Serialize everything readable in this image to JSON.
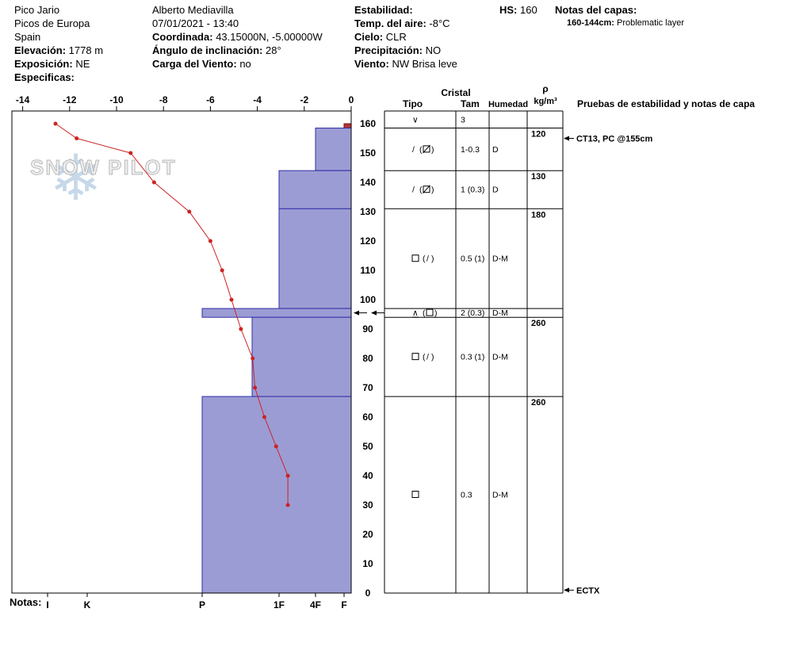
{
  "header": {
    "site": {
      "name": "Pico Jario",
      "range": "Picos de Europa",
      "country": "Spain",
      "elevation_label": "Elevación:",
      "elevation": "1778 m",
      "aspect_label": "Exposición:",
      "aspect": "NE",
      "specifics_label": "Especificas:"
    },
    "observer": {
      "name": "Alberto Mediavilla",
      "datetime": "07/01/2021 - 13:40",
      "coordinates_label": "Coordinada:",
      "coordinates": "43.15000N, -5.00000W",
      "slope_angle_label": "Ángulo de inclinación:",
      "slope_angle": "28°",
      "wind_loading_label": "Carga del Viento:",
      "wind_loading": "no"
    },
    "weather": {
      "stability_label": "Estabilidad:",
      "air_temp_label": "Temp. del aire:",
      "air_temp": "-8°C",
      "sky_label": "Cielo:",
      "sky": "CLR",
      "precip_label": "Precipitación:",
      "precip": "NO",
      "wind_label": "Viento:",
      "wind": "NW Brisa leve"
    },
    "hs_label": "HS:",
    "hs_value": "160",
    "layer_notes_label": "Notas del capas:",
    "layer_note_range": "160-144cm:",
    "layer_note_text": "Problematic layer"
  },
  "watermark": {
    "text": "SNOW PILOT",
    "flake_glyph": "❄"
  },
  "notes_label": "Notas:",
  "chart_data": {
    "type": "snow-profile",
    "temp_axis": {
      "ticks": [
        -14,
        -12,
        -10,
        -8,
        -6,
        -4,
        -2,
        0
      ],
      "unit": "°C"
    },
    "depth_axis": {
      "ticks": [
        0,
        10,
        20,
        30,
        40,
        50,
        60,
        70,
        80,
        90,
        100,
        110,
        120,
        130,
        140,
        150,
        160
      ],
      "unit": "cm",
      "total_depth_cm": 160
    },
    "hardness_axis": {
      "categories": [
        "I",
        "K",
        "P",
        "1F",
        "4F",
        "F"
      ]
    },
    "temperature_profile": {
      "depths_cm": [
        160,
        155,
        150,
        140,
        130,
        120,
        110,
        100,
        90,
        80,
        70,
        60,
        50,
        40,
        30
      ],
      "temps_c": [
        -12.6,
        -11.7,
        -9.4,
        -8.4,
        -6.9,
        -6.0,
        -5.5,
        -5.1,
        -4.7,
        -4.2,
        -4.1,
        -3.7,
        -3.2,
        -2.7,
        -2.7
      ]
    },
    "layers": [
      {
        "top_cm": 160,
        "bottom_cm": 158.5,
        "hardness": "F",
        "surface_red": true
      },
      {
        "top_cm": 158.5,
        "bottom_cm": 144,
        "hardness": "4F"
      },
      {
        "top_cm": 144,
        "bottom_cm": 131,
        "hardness": "1F"
      },
      {
        "top_cm": 131,
        "bottom_cm": 97,
        "hardness": "1F"
      },
      {
        "top_cm": 97,
        "bottom_cm": 94,
        "hardness": "P"
      },
      {
        "top_cm": 94,
        "bottom_cm": 67,
        "hardness": "1F-P"
      },
      {
        "top_cm": 67,
        "bottom_cm": 0,
        "hardness": "P"
      }
    ],
    "flagged_layer_depth_cm": 95.5,
    "colors": {
      "bar_fill": "#9c9cd4",
      "bar_stroke": "#3030a8",
      "surface_layer": "#b23434",
      "temp_line": "#cc2222"
    }
  },
  "table": {
    "headers": {
      "cristal": "Cristal",
      "tipo": "Tipo",
      "tam": "Tam",
      "humedad": "Humedad",
      "rho": "ρ",
      "rho_units": "kg/m³",
      "tests": "Pruebas de estabilidad y notas de capa"
    },
    "rows": [
      {
        "top_cm": 160,
        "bottom_cm": 158.5,
        "tipo_symbols": [
          "vee"
        ],
        "tam": "3",
        "humedad": ""
      },
      {
        "top_cm": 158.5,
        "bottom_cm": 144,
        "tipo_symbols": [
          "slash",
          "space",
          "paren-open",
          "square-slash",
          "paren-close"
        ],
        "tam": "1-0.3",
        "humedad": "D"
      },
      {
        "top_cm": 144,
        "bottom_cm": 131,
        "tipo_symbols": [
          "slash",
          "space",
          "paren-open",
          "square-slash",
          "paren-close"
        ],
        "tam": "1 (0.3)",
        "humedad": "D"
      },
      {
        "top_cm": 131,
        "bottom_cm": 97,
        "tipo_symbols": [
          "square",
          "space",
          "paren-open",
          "slash",
          "paren-close"
        ],
        "tam": "0.5 (1)",
        "humedad": "D-M"
      },
      {
        "top_cm": 97,
        "bottom_cm": 94,
        "tipo_symbols": [
          "wedge-underlined",
          "space",
          "paren-open",
          "square",
          "paren-close"
        ],
        "tam": "2 (0.3)",
        "humedad": "D-M"
      },
      {
        "top_cm": 94,
        "bottom_cm": 67,
        "tipo_symbols": [
          "square",
          "space",
          "paren-open",
          "slash",
          "paren-close"
        ],
        "tam": "0.3 (1)",
        "humedad": "D-M"
      },
      {
        "top_cm": 67,
        "bottom_cm": 0,
        "tipo_symbols": [
          "square"
        ],
        "tam": "0.3",
        "humedad": "D-M"
      }
    ],
    "densities": [
      {
        "value": "120",
        "top_cm": 158.5
      },
      {
        "value": "130",
        "top_cm": 144
      },
      {
        "value": "180",
        "top_cm": 131
      },
      {
        "value": "260",
        "top_cm": 94
      },
      {
        "value": "260",
        "top_cm": 67
      }
    ],
    "test_notes": [
      {
        "text": "CT13, PC @155cm",
        "depth_cm": 155
      },
      {
        "text": "ECTX",
        "depth_cm": 1
      }
    ]
  }
}
